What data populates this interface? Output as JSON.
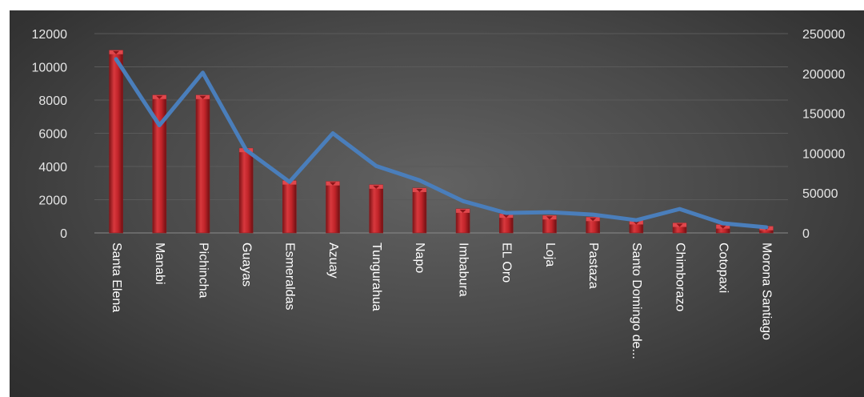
{
  "chart_data": {
    "type": "bar",
    "categories": [
      "Santa Elena",
      "Manabi",
      "Pichincha",
      "Guayas",
      "Esmeraldas",
      "Azuay",
      "Tungurahua",
      "Napo",
      "Imbabura",
      "EL Oro",
      "Loja",
      "Pastaza",
      "Santo Domingo de...",
      "Chimborazo",
      "Cotopaxi",
      "Morona Santiago"
    ],
    "series": [
      {
        "type": "bar",
        "axis": "left",
        "color": "#c0252b",
        "values": [
          11000,
          8300,
          8300,
          5100,
          3150,
          3100,
          2900,
          2700,
          1450,
          1150,
          1050,
          950,
          750,
          600,
          500,
          400
        ]
      },
      {
        "type": "line",
        "axis": "right",
        "color": "#4a7ebb",
        "values": [
          218000,
          135000,
          201000,
          104000,
          64000,
          125000,
          84000,
          66000,
          40000,
          25000,
          26000,
          23000,
          16000,
          30000,
          12000,
          7000
        ]
      }
    ],
    "y_left": {
      "ylim": [
        0,
        12000
      ],
      "ticks": [
        "0",
        "2000",
        "4000",
        "6000",
        "8000",
        "10000",
        "12000"
      ]
    },
    "y_right": {
      "ylim": [
        0,
        250000
      ],
      "ticks": [
        "0",
        "50000",
        "100000",
        "150000",
        "200000",
        "250000"
      ]
    },
    "grid": true,
    "legend": "none"
  }
}
